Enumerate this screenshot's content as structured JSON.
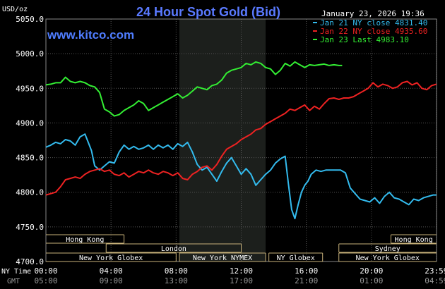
{
  "chart_data": {
    "type": "line",
    "title": "24 Hour Spot Gold (Bid)",
    "unit_label": "USD/oz",
    "site": "www.kitco.com",
    "timestamp": "January 23, 2026 19:36",
    "ylim": [
      4700,
      5050
    ],
    "y_ticks": [
      "5050.0",
      "5000.0",
      "4950.0",
      "4900.0",
      "4850.0",
      "4800.0",
      "4750.0",
      "4700.0"
    ],
    "x_ticks_ny": [
      "00:00",
      "04:00",
      "08:00",
      "12:00",
      "16:00",
      "20:00",
      "23:59"
    ],
    "x_ticks_gmt": [
      "05:00",
      "09:00",
      "13:00",
      "17:00",
      "21:00",
      "01:00",
      "04:59"
    ],
    "x_row_labels": [
      "NY Time",
      "GMT"
    ],
    "xlim_hours": [
      0,
      24
    ],
    "highlight_band_hours": [
      8.2,
      13.5
    ],
    "grid": true,
    "legend_position": "top-right",
    "colors": {
      "background": "#000000",
      "grid": "#555555",
      "axis_text": "#ffffff",
      "title": "#5a7aff",
      "site": "#4f7dff",
      "band": "#1c1f1c",
      "session_bar": "#c8b27a",
      "session_text": "#ffffff"
    },
    "series": [
      {
        "name": "Jan 21 NY close 4831.40",
        "color": "#33bbee",
        "x": [
          0.0,
          0.3,
          0.6,
          0.9,
          1.2,
          1.5,
          1.8,
          2.1,
          2.4,
          2.6,
          2.8,
          3.0,
          3.3,
          3.6,
          3.9,
          4.2,
          4.5,
          4.8,
          5.1,
          5.4,
          5.7,
          6.0,
          6.3,
          6.6,
          6.9,
          7.2,
          7.5,
          7.8,
          8.1,
          8.4,
          8.7,
          9.0,
          9.3,
          9.6,
          9.9,
          10.2,
          10.5,
          10.8,
          11.1,
          11.4,
          11.7,
          12.0,
          12.3,
          12.6,
          12.9,
          13.2,
          13.5,
          13.8,
          14.1,
          14.4,
          14.7,
          14.9,
          15.1,
          15.3,
          15.5,
          15.7,
          15.9,
          16.1,
          16.3,
          16.6,
          16.9,
          17.2,
          17.5,
          17.8,
          18.1,
          18.4,
          18.7,
          19.0,
          19.3,
          19.6,
          19.9,
          20.2,
          20.5,
          20.8,
          21.1,
          21.4,
          21.7,
          22.0,
          22.3,
          22.6,
          22.9,
          23.2,
          23.5,
          23.8,
          23.99
        ],
        "values": [
          4865,
          4868,
          4872,
          4870,
          4876,
          4874,
          4868,
          4880,
          4884,
          4872,
          4860,
          4838,
          4832,
          4838,
          4844,
          4842,
          4858,
          4868,
          4862,
          4866,
          4862,
          4864,
          4868,
          4862,
          4868,
          4864,
          4868,
          4862,
          4870,
          4866,
          4872,
          4858,
          4840,
          4832,
          4836,
          4826,
          4816,
          4830,
          4842,
          4850,
          4838,
          4826,
          4834,
          4826,
          4810,
          4818,
          4826,
          4832,
          4842,
          4848,
          4852,
          4812,
          4775,
          4762,
          4782,
          4800,
          4810,
          4816,
          4826,
          4832,
          4830,
          4832,
          4832,
          4832,
          4832,
          4828,
          4806,
          4798,
          4790,
          4788,
          4786,
          4792,
          4784,
          4794,
          4800,
          4792,
          4790,
          4786,
          4782,
          4790,
          4788,
          4792,
          4794,
          4796,
          4796
        ]
      },
      {
        "name": "Jan 22 NY close 4935.60",
        "color": "#ee2222",
        "x": [
          0.0,
          0.3,
          0.6,
          0.9,
          1.2,
          1.5,
          1.8,
          2.1,
          2.4,
          2.7,
          3.0,
          3.3,
          3.6,
          3.9,
          4.2,
          4.5,
          4.8,
          5.1,
          5.4,
          5.7,
          6.0,
          6.3,
          6.6,
          6.9,
          7.2,
          7.5,
          7.8,
          8.1,
          8.4,
          8.7,
          9.0,
          9.3,
          9.6,
          9.9,
          10.2,
          10.5,
          10.8,
          11.1,
          11.4,
          11.7,
          12.0,
          12.3,
          12.6,
          12.9,
          13.2,
          13.5,
          13.8,
          14.1,
          14.4,
          14.7,
          15.0,
          15.3,
          15.6,
          15.9,
          16.2,
          16.5,
          16.8,
          17.1,
          17.4,
          17.7,
          18.0,
          18.3,
          18.6,
          18.9,
          19.2,
          19.5,
          19.8,
          20.1,
          20.4,
          20.7,
          21.0,
          21.3,
          21.6,
          21.9,
          22.2,
          22.5,
          22.8,
          23.1,
          23.4,
          23.7,
          23.99
        ],
        "values": [
          4796,
          4798,
          4800,
          4808,
          4818,
          4820,
          4822,
          4820,
          4826,
          4830,
          4832,
          4834,
          4830,
          4832,
          4826,
          4824,
          4828,
          4822,
          4826,
          4830,
          4828,
          4832,
          4828,
          4826,
          4830,
          4828,
          4824,
          4828,
          4820,
          4818,
          4826,
          4830,
          4836,
          4838,
          4832,
          4840,
          4852,
          4862,
          4866,
          4870,
          4876,
          4880,
          4884,
          4890,
          4892,
          4898,
          4902,
          4906,
          4910,
          4914,
          4920,
          4918,
          4922,
          4926,
          4918,
          4924,
          4920,
          4928,
          4935,
          4936,
          4934,
          4936,
          4936,
          4938,
          4942,
          4946,
          4950,
          4958,
          4952,
          4956,
          4954,
          4950,
          4952,
          4958,
          4960,
          4955,
          4958,
          4950,
          4948,
          4954,
          4956
        ]
      },
      {
        "name": "Jan 23 Last 4983.10",
        "color": "#33ee33",
        "x": [
          0.0,
          0.3,
          0.6,
          0.9,
          1.2,
          1.5,
          1.8,
          2.1,
          2.4,
          2.7,
          3.0,
          3.3,
          3.6,
          3.9,
          4.2,
          4.5,
          4.8,
          5.1,
          5.4,
          5.7,
          6.0,
          6.3,
          6.6,
          6.9,
          7.2,
          7.5,
          7.8,
          8.1,
          8.4,
          8.7,
          9.0,
          9.3,
          9.6,
          9.9,
          10.2,
          10.5,
          10.8,
          11.1,
          11.4,
          11.7,
          12.0,
          12.3,
          12.6,
          12.9,
          13.2,
          13.5,
          13.8,
          14.1,
          14.4,
          14.7,
          15.0,
          15.3,
          15.6,
          15.9,
          16.2,
          16.5,
          16.8,
          17.1,
          17.4,
          17.7,
          18.0,
          18.2
        ],
        "values": [
          4955,
          4956,
          4958,
          4958,
          4966,
          4960,
          4958,
          4960,
          4958,
          4954,
          4952,
          4944,
          4920,
          4916,
          4910,
          4912,
          4918,
          4922,
          4926,
          4932,
          4928,
          4918,
          4922,
          4926,
          4930,
          4934,
          4938,
          4942,
          4936,
          4940,
          4946,
          4952,
          4950,
          4948,
          4954,
          4956,
          4962,
          4972,
          4976,
          4978,
          4980,
          4986,
          4984,
          4988,
          4986,
          4980,
          4978,
          4970,
          4976,
          4986,
          4982,
          4988,
          4984,
          4980,
          4984,
          4983,
          4984,
          4985,
          4983,
          4984,
          4983,
          4983
        ]
      }
    ],
    "sessions": [
      {
        "label": "Hong Kong",
        "row": 0,
        "start": 0,
        "end": 4.8,
        "open_left": true
      },
      {
        "label": "Hong Kong",
        "row": 0,
        "start": 21.2,
        "end": 23.99,
        "open_right": true
      },
      {
        "label": "London",
        "row": 1,
        "start": 3.7,
        "end": 12.0
      },
      {
        "label": "Sydney",
        "row": 1,
        "start": 18.0,
        "end": 23.99,
        "open_right": true
      },
      {
        "label": "New York Globex",
        "row": 2,
        "start": 0,
        "end": 8.0,
        "open_left": true
      },
      {
        "label": "New York NYMEX",
        "row": 2,
        "start": 8.2,
        "end": 13.5
      },
      {
        "label": "NY Globex",
        "row": 2,
        "start": 13.7,
        "end": 17.0
      },
      {
        "label": "New York Globex",
        "row": 2,
        "start": 18.0,
        "end": 23.99,
        "open_right": true
      }
    ]
  }
}
